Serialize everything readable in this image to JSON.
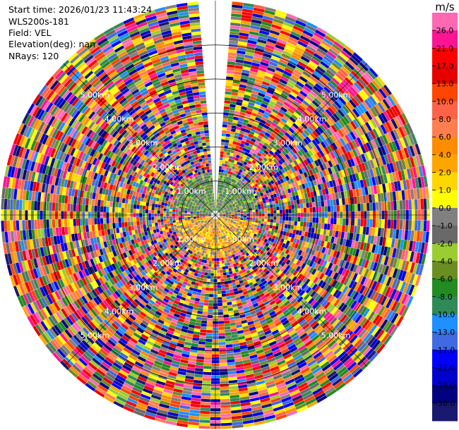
{
  "header": {
    "lines": [
      "Start time: 2026/01/23 11:43:24",
      "WLS200s-181",
      "Field: VEL",
      "Elevation(deg): nan",
      "NRays: 120"
    ]
  },
  "chart_data": {
    "type": "heatmap",
    "projection": "polar-ppi",
    "field": "VEL",
    "n_rays": 120,
    "range_rings_km": [
      1.0,
      2.0,
      3.0,
      4.0,
      5.0
    ],
    "range_ring_labels": [
      "1.00km",
      "2.00km",
      "3.00km",
      "4.00km",
      "5.00km"
    ],
    "max_range_km": 6.3,
    "colorbar": {
      "unit": "m/s",
      "vmin": -30.0,
      "vmax": 30.0,
      "tick_labels": [
        "26.0",
        "21.0",
        "17.0",
        "13.0",
        "10.0",
        "8.0",
        "6.0",
        "4.0",
        "2.0",
        "1.0",
        "0.0",
        "-1.0",
        "-2.0",
        "-4.0",
        "-6.0",
        "-8.0",
        "-10.0",
        "-13.0",
        "-17.0",
        "-21.0",
        "-26.0",
        "-30.0"
      ],
      "colors": [
        "#ff69b4",
        "#ff1493",
        "#ff0000",
        "#e60000",
        "#ff4500",
        "#ff6347",
        "#ff7f50",
        "#ff8c00",
        "#ffa500",
        "#ffd700",
        "#ffff00",
        "#808080",
        "#696969",
        "#9acd32",
        "#6b8e23",
        "#228b22",
        "#2e8b57",
        "#1e90ff",
        "#4169e1",
        "#0000ff",
        "#0000cd",
        "#000080",
        "#191970"
      ]
    }
  }
}
